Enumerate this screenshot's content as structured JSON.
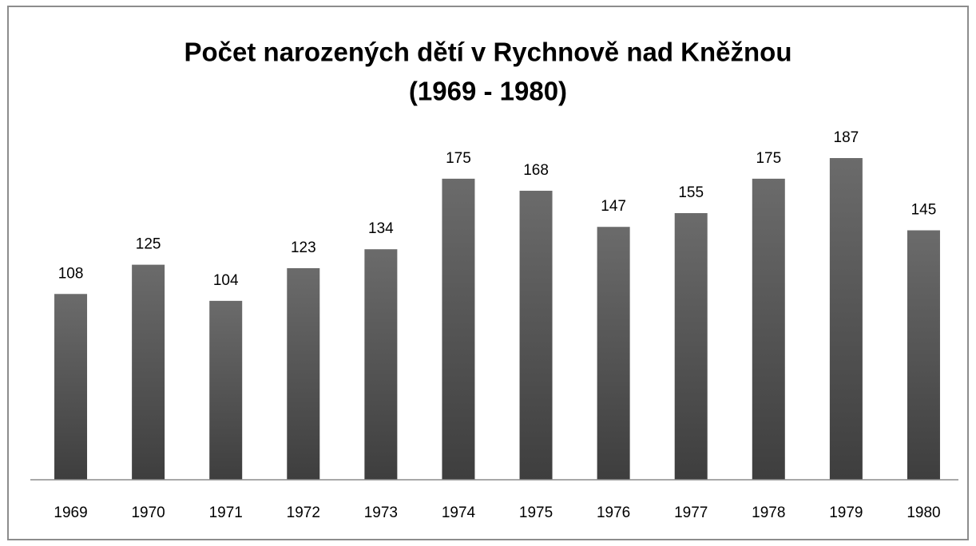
{
  "chart_data": {
    "type": "bar",
    "title": [
      "Počet narozených dětí v Rychnově nad Kněžnou",
      "(1969 - 1980)"
    ],
    "categories": [
      "1969",
      "1970",
      "1971",
      "1972",
      "1973",
      "1974",
      "1975",
      "1976",
      "1977",
      "1978",
      "1979",
      "1980"
    ],
    "values": [
      108,
      125,
      104,
      123,
      134,
      175,
      168,
      147,
      155,
      175,
      187,
      145
    ],
    "color": "#6b6b6b",
    "ylim": [
      0,
      200
    ]
  }
}
